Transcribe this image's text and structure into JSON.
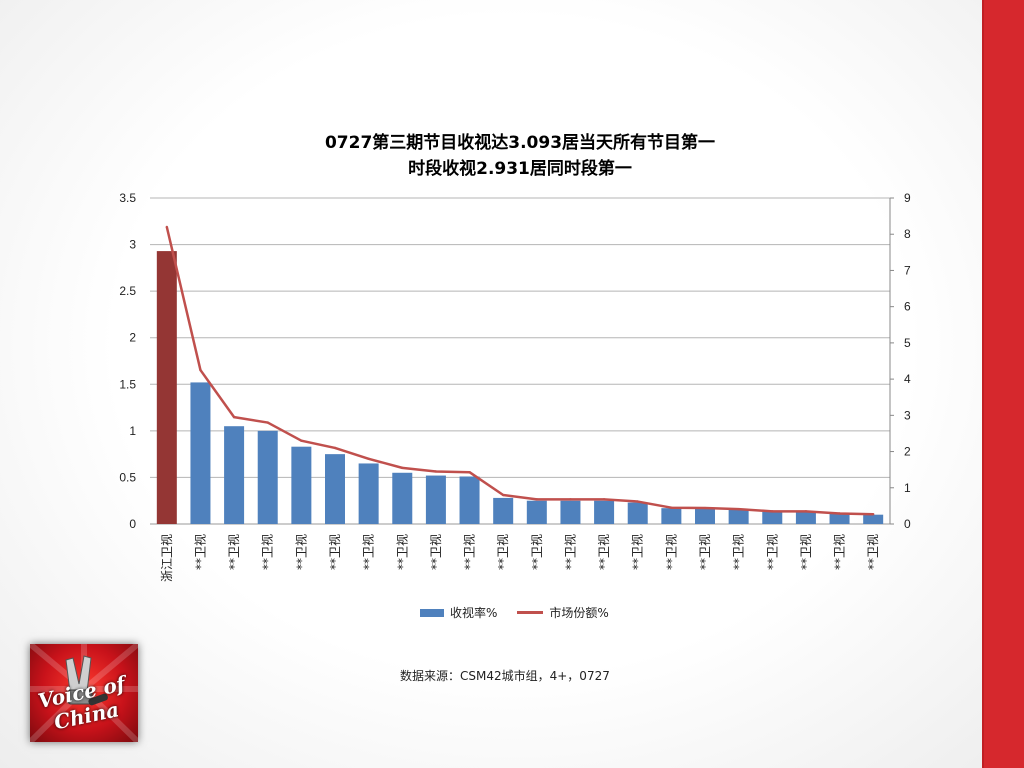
{
  "chart_data": {
    "type": "bar",
    "title_line1": "0727第三期节目收视达3.093居当天所有节目第一",
    "title_line2": "时段收视2.931居同时段第一",
    "categories": [
      "浙江卫视",
      "**卫视",
      "**卫视",
      "**卫视",
      "**卫视",
      "**卫视",
      "**卫视",
      "**卫视",
      "**卫视",
      "**卫视",
      "**卫视",
      "**卫视",
      "**卫视",
      "**卫视",
      "**卫视",
      "**卫视",
      "**卫视",
      "**卫视",
      "**卫视",
      "**卫视",
      "**卫视",
      "**卫视"
    ],
    "series": [
      {
        "name": "收视率%",
        "type": "bar",
        "axis": "left",
        "color": "#4f81bd",
        "highlight_color": "#943634",
        "values": [
          2.93,
          1.52,
          1.05,
          1.0,
          0.83,
          0.75,
          0.65,
          0.55,
          0.52,
          0.51,
          0.28,
          0.25,
          0.25,
          0.25,
          0.23,
          0.17,
          0.17,
          0.16,
          0.13,
          0.13,
          0.11,
          0.1
        ]
      },
      {
        "name": "市场份额%",
        "type": "line",
        "axis": "right",
        "color": "#c0504d",
        "values": [
          8.2,
          4.25,
          2.95,
          2.8,
          2.3,
          2.1,
          1.8,
          1.55,
          1.45,
          1.43,
          0.8,
          0.68,
          0.68,
          0.68,
          0.62,
          0.45,
          0.44,
          0.41,
          0.35,
          0.35,
          0.29,
          0.27
        ]
      }
    ],
    "y_left": {
      "min": 0,
      "max": 3.5,
      "ticks": [
        "0",
        "0.5",
        "1",
        "1.5",
        "2",
        "2.5",
        "3",
        "3.5"
      ]
    },
    "y_right": {
      "min": 0,
      "max": 9,
      "ticks": [
        "0",
        "1",
        "2",
        "3",
        "4",
        "5",
        "6",
        "7",
        "8",
        "9"
      ]
    },
    "grid": true,
    "legend_position": "bottom"
  },
  "source_text": "数据来源：CSM42城市组，4+，0727",
  "logo": {
    "text": "Voice of China"
  }
}
